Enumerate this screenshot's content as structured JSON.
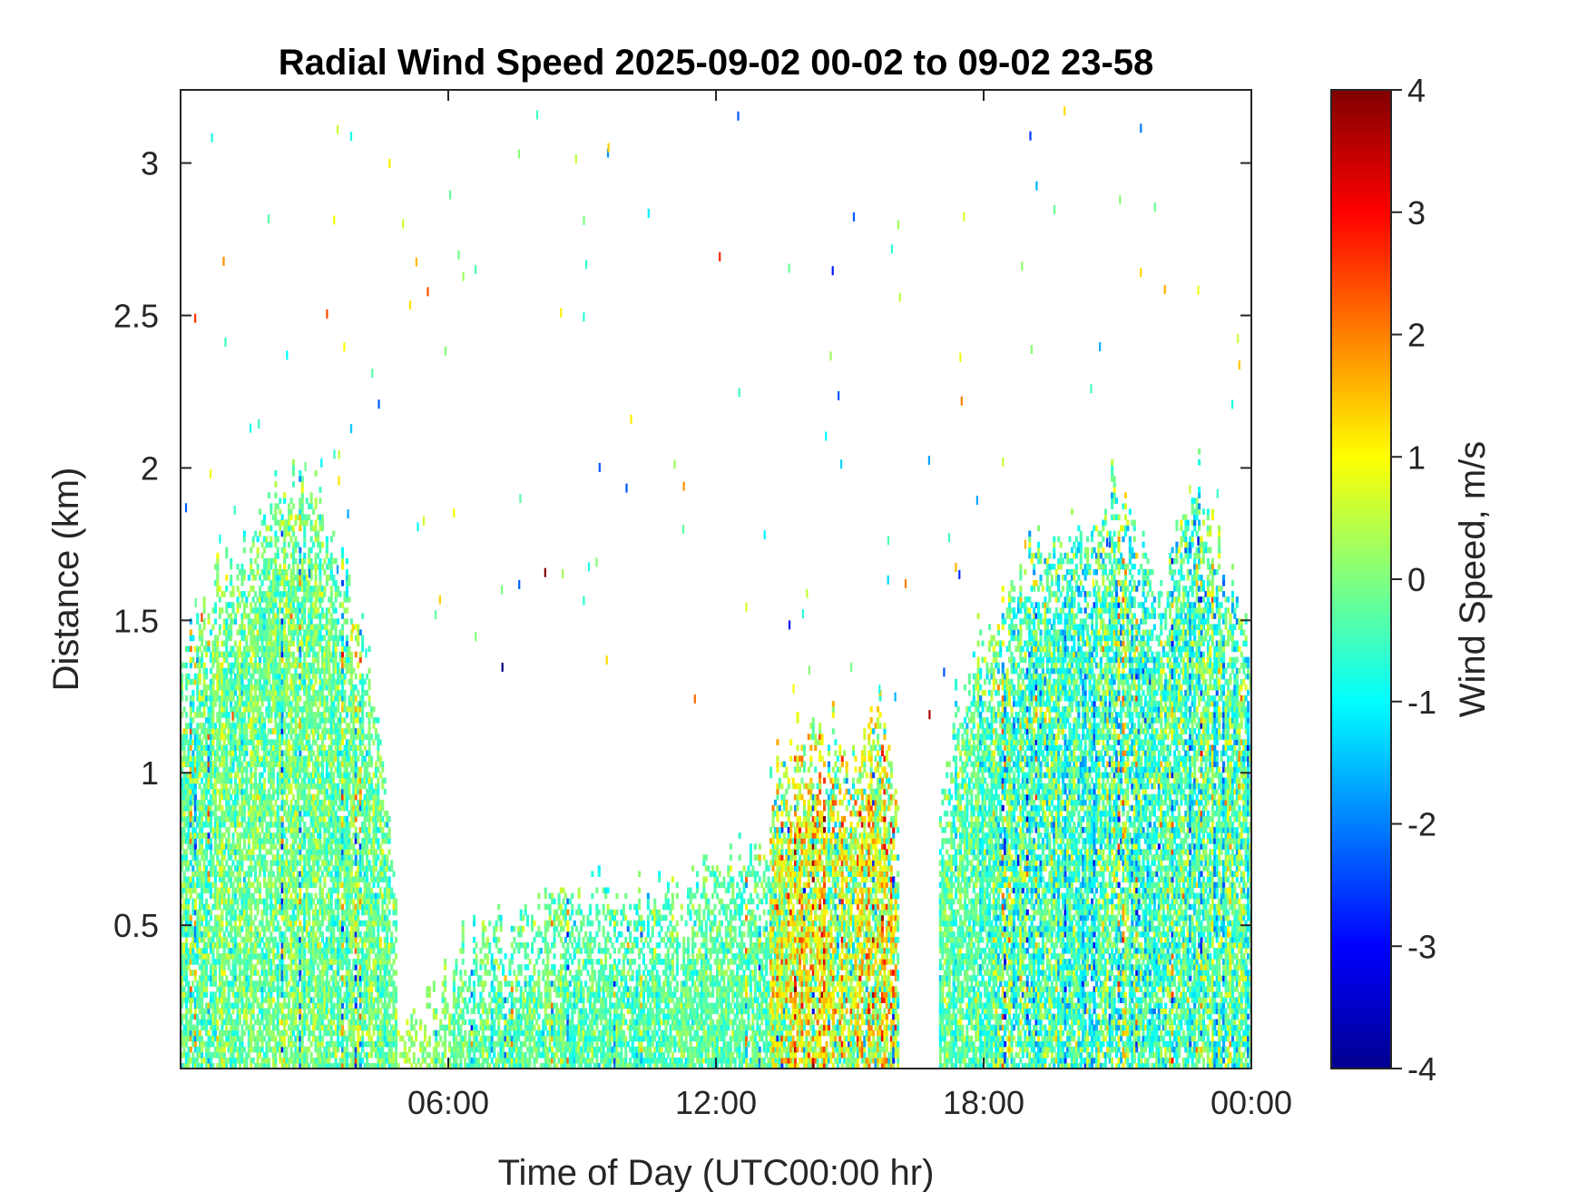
{
  "chart_data": {
    "type": "heatmap",
    "title": "Radial Wind Speed 2025-09-02 00-02 to 09-02 23-58",
    "xlabel": "Time of Day (UTC00:00 hr)",
    "ylabel": "Distance (km)",
    "colorbar_label": "Wind Speed, m/s",
    "colormap": "jet",
    "xlim_hours": [
      0,
      24
    ],
    "ylim_km": [
      0.03,
      3.24
    ],
    "clim": [
      -4,
      4
    ],
    "x_ticks": [
      {
        "value": 6,
        "label": "06:00"
      },
      {
        "value": 12,
        "label": "12:00"
      },
      {
        "value": 18,
        "label": "18:00"
      },
      {
        "value": 24,
        "label": "00:00"
      }
    ],
    "y_ticks": [
      {
        "value": 0.5,
        "label": "0.5"
      },
      {
        "value": 1,
        "label": "1"
      },
      {
        "value": 1.5,
        "label": "1.5"
      },
      {
        "value": 2,
        "label": "2"
      },
      {
        "value": 2.5,
        "label": "2.5"
      },
      {
        "value": 3,
        "label": "3"
      }
    ],
    "colorbar_ticks": [
      {
        "value": 4,
        "label": "4"
      },
      {
        "value": 3,
        "label": "3"
      },
      {
        "value": 2,
        "label": "2"
      },
      {
        "value": 1,
        "label": "1"
      },
      {
        "value": 0,
        "label": "0"
      },
      {
        "value": -1,
        "label": "-1"
      },
      {
        "value": -2,
        "label": "-2"
      },
      {
        "value": -3,
        "label": "-3"
      },
      {
        "value": -4,
        "label": "-4"
      }
    ],
    "echo_regions": [
      {
        "name": "night-early",
        "t_start": 0.0,
        "t_end": 4.8,
        "top_profile": [
          [
            0.0,
            1.4
          ],
          [
            0.5,
            1.55
          ],
          [
            1.2,
            1.7
          ],
          [
            2.0,
            1.95
          ],
          [
            3.0,
            1.9
          ],
          [
            3.8,
            1.6
          ],
          [
            4.5,
            1.1
          ],
          [
            4.8,
            0.6
          ]
        ],
        "mean_speed": -0.2,
        "spread": 0.8
      },
      {
        "name": "gap-low",
        "t_start": 4.8,
        "t_end": 6.1,
        "top_profile": [
          [
            4.8,
            0.2
          ],
          [
            6.1,
            0.25
          ]
        ],
        "mean_speed": 0.2,
        "spread": 0.6
      },
      {
        "name": "morning-boundary-layer",
        "t_start": 6.1,
        "t_end": 13.6,
        "top_profile": [
          [
            6.1,
            0.3
          ],
          [
            6.6,
            0.45
          ],
          [
            7.4,
            0.5
          ],
          [
            8.4,
            0.6
          ],
          [
            9.5,
            0.58
          ],
          [
            10.5,
            0.55
          ],
          [
            11.5,
            0.65
          ],
          [
            12.5,
            0.72
          ],
          [
            13.4,
            0.75
          ],
          [
            13.6,
            1.0
          ]
        ],
        "mean_speed": -0.3,
        "spread": 0.7
      },
      {
        "name": "afternoon-convection",
        "t_start": 13.2,
        "t_end": 16.1,
        "top_profile": [
          [
            13.2,
            0.9
          ],
          [
            13.8,
            1.15
          ],
          [
            14.6,
            1.1
          ],
          [
            15.2,
            1.05
          ],
          [
            15.7,
            1.2
          ],
          [
            16.1,
            0.8
          ]
        ],
        "mean_speed": 0.6,
        "spread": 1.6
      },
      {
        "name": "sparse-evening",
        "t_start": 17.0,
        "t_end": 18.2,
        "top_profile": [
          [
            17.0,
            0.9
          ],
          [
            17.6,
            1.3
          ],
          [
            18.2,
            1.5
          ]
        ],
        "mean_speed": -0.3,
        "spread": 0.8
      },
      {
        "name": "night-late",
        "t_start": 18.2,
        "t_end": 24.0,
        "top_profile": [
          [
            18.2,
            1.45
          ],
          [
            19.0,
            1.7
          ],
          [
            20.0,
            1.75
          ],
          [
            21.0,
            1.9
          ],
          [
            22.0,
            1.6
          ],
          [
            22.8,
            1.95
          ],
          [
            23.5,
            1.6
          ],
          [
            24.0,
            1.4
          ]
        ],
        "mean_speed": -0.4,
        "spread": 1.2
      }
    ],
    "isolated_speckles": "scattered single-gate returns between 1.2 and 3.2 km across the full day"
  }
}
